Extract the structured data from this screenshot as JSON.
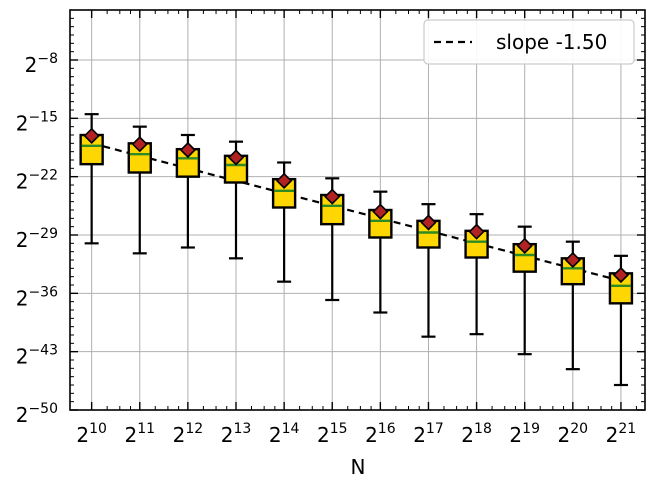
{
  "chart_data": {
    "type": "box",
    "title": "",
    "xlabel": "N",
    "ylabel": "",
    "x_scale": "log2",
    "y_scale": "log2",
    "x": [
      1024,
      2048,
      4096,
      8192,
      16384,
      32768,
      65536,
      131072,
      262144,
      524288,
      1048576,
      2097152
    ],
    "xtick_labels": [
      {
        "base": "2",
        "exp": "10"
      },
      {
        "base": "2",
        "exp": "11"
      },
      {
        "base": "2",
        "exp": "12"
      },
      {
        "base": "2",
        "exp": "13"
      },
      {
        "base": "2",
        "exp": "14"
      },
      {
        "base": "2",
        "exp": "15"
      },
      {
        "base": "2",
        "exp": "16"
      },
      {
        "base": "2",
        "exp": "17"
      },
      {
        "base": "2",
        "exp": "18"
      },
      {
        "base": "2",
        "exp": "19"
      },
      {
        "base": "2",
        "exp": "20"
      },
      {
        "base": "2",
        "exp": "21"
      }
    ],
    "yticks_exp": [
      -8,
      -15,
      -22,
      -29,
      -36,
      -43,
      -50
    ],
    "ytick_labels": [
      {
        "base": "2",
        "exp": "−8"
      },
      {
        "base": "2",
        "exp": "−15"
      },
      {
        "base": "2",
        "exp": "−22"
      },
      {
        "base": "2",
        "exp": "−29"
      },
      {
        "base": "2",
        "exp": "−36"
      },
      {
        "base": "2",
        "exp": "−43"
      },
      {
        "base": "2",
        "exp": "−50"
      }
    ],
    "ylim_exp": [
      -50,
      -2
    ],
    "grid": true,
    "boxes_log2": [
      {
        "whislo": -30.0,
        "q1": -20.5,
        "med": -18.3,
        "q3": -17.0,
        "whishi": -14.5,
        "mean": -17.1
      },
      {
        "whislo": -31.2,
        "q1": -21.5,
        "med": -19.3,
        "q3": -18.0,
        "whishi": -16.0,
        "mean": -18.1
      },
      {
        "whislo": -30.5,
        "q1": -22.0,
        "med": -19.8,
        "q3": -18.7,
        "whishi": -17.0,
        "mean": -18.8
      },
      {
        "whislo": -31.8,
        "q1": -22.7,
        "med": -20.6,
        "q3": -19.5,
        "whishi": -17.8,
        "mean": -19.7
      },
      {
        "whislo": -34.6,
        "q1": -25.7,
        "med": -23.7,
        "q3": -22.3,
        "whishi": -20.3,
        "mean": -22.5
      },
      {
        "whislo": -36.8,
        "q1": -27.7,
        "med": -25.5,
        "q3": -24.2,
        "whishi": -22.2,
        "mean": -24.4
      },
      {
        "whislo": -38.3,
        "q1": -29.3,
        "med": -27.3,
        "q3": -26.0,
        "whishi": -23.8,
        "mean": -26.2
      },
      {
        "whislo": -41.2,
        "q1": -30.5,
        "med": -28.7,
        "q3": -27.3,
        "whishi": -25.3,
        "mean": -27.5
      },
      {
        "whislo": -40.9,
        "q1": -31.7,
        "med": -29.8,
        "q3": -28.5,
        "whishi": -26.5,
        "mean": -28.6
      },
      {
        "whislo": -43.3,
        "q1": -33.4,
        "med": -31.4,
        "q3": -30.1,
        "whishi": -28.0,
        "mean": -30.3
      },
      {
        "whislo": -45.1,
        "q1": -34.9,
        "med": -33.0,
        "q3": -31.8,
        "whishi": -29.8,
        "mean": -32.0
      },
      {
        "whislo": -47.0,
        "q1": -37.2,
        "med": -35.1,
        "q3": -33.6,
        "whishi": -31.5,
        "mean": -33.8
      }
    ],
    "reference_line": {
      "label": "slope -1.50",
      "slope": -1.5,
      "x_exp_range": [
        10,
        21
      ],
      "y_exp_at_x10": -18.0,
      "style": "dashed"
    },
    "legend": {
      "position": "top-right",
      "entries": [
        "slope -1.50"
      ]
    },
    "colors": {
      "box_fill": "#ffd700",
      "box_edge": "#000000",
      "median": "#2e8b22",
      "mean_marker": "#b22222",
      "reference_line": "#000000",
      "grid": "#b0b0b0"
    }
  }
}
